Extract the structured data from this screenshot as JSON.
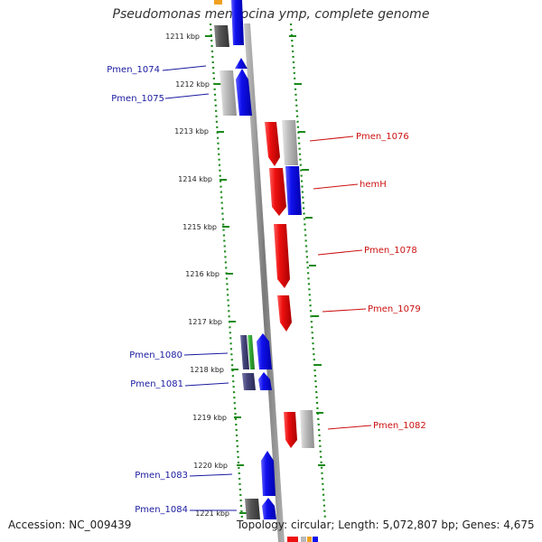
{
  "title": "Pseudomonas mendocina ymp, complete genome",
  "footer": {
    "accession": "Accession: NC_009439",
    "summary": "Topology: circular; Length: 5,072,807 bp; Genes: 4,675"
  },
  "ticks": [
    "1211 kbp",
    "1212 kbp",
    "1213 kbp",
    "1214 kbp",
    "1215 kbp",
    "1216 kbp",
    "1217 kbp",
    "1218 kbp",
    "1219 kbp",
    "1220 kbp",
    "1221 kbp"
  ],
  "labels": [
    {
      "name": "Pmen_1074",
      "strand": "forward"
    },
    {
      "name": "Pmen_1075",
      "strand": "forward"
    },
    {
      "name": "Pmen_1076",
      "strand": "reverse"
    },
    {
      "name": "hemH",
      "strand": "reverse"
    },
    {
      "name": "Pmen_1078",
      "strand": "reverse"
    },
    {
      "name": "Pmen_1079",
      "strand": "reverse"
    },
    {
      "name": "Pmen_1080",
      "strand": "forward"
    },
    {
      "name": "Pmen_1081",
      "strand": "forward"
    },
    {
      "name": "Pmen_1082",
      "strand": "reverse"
    },
    {
      "name": "Pmen_1083",
      "strand": "forward"
    },
    {
      "name": "Pmen_1084",
      "strand": "forward"
    }
  ],
  "colors": {
    "forward_cds": "#1010ee",
    "reverse_cds": "#ee1010",
    "forward_label": "#1a1aa0",
    "reverse_label": "#cc1111",
    "other_gene": "#b8b8b8",
    "dark_gene": "#5a5a5a",
    "rna_gene": "#33aa33",
    "slate_gene": "#44447a",
    "orange_gene": "#f0a020",
    "dotted_track": "#1a8a1a",
    "backbone": "#8a8a8a"
  }
}
